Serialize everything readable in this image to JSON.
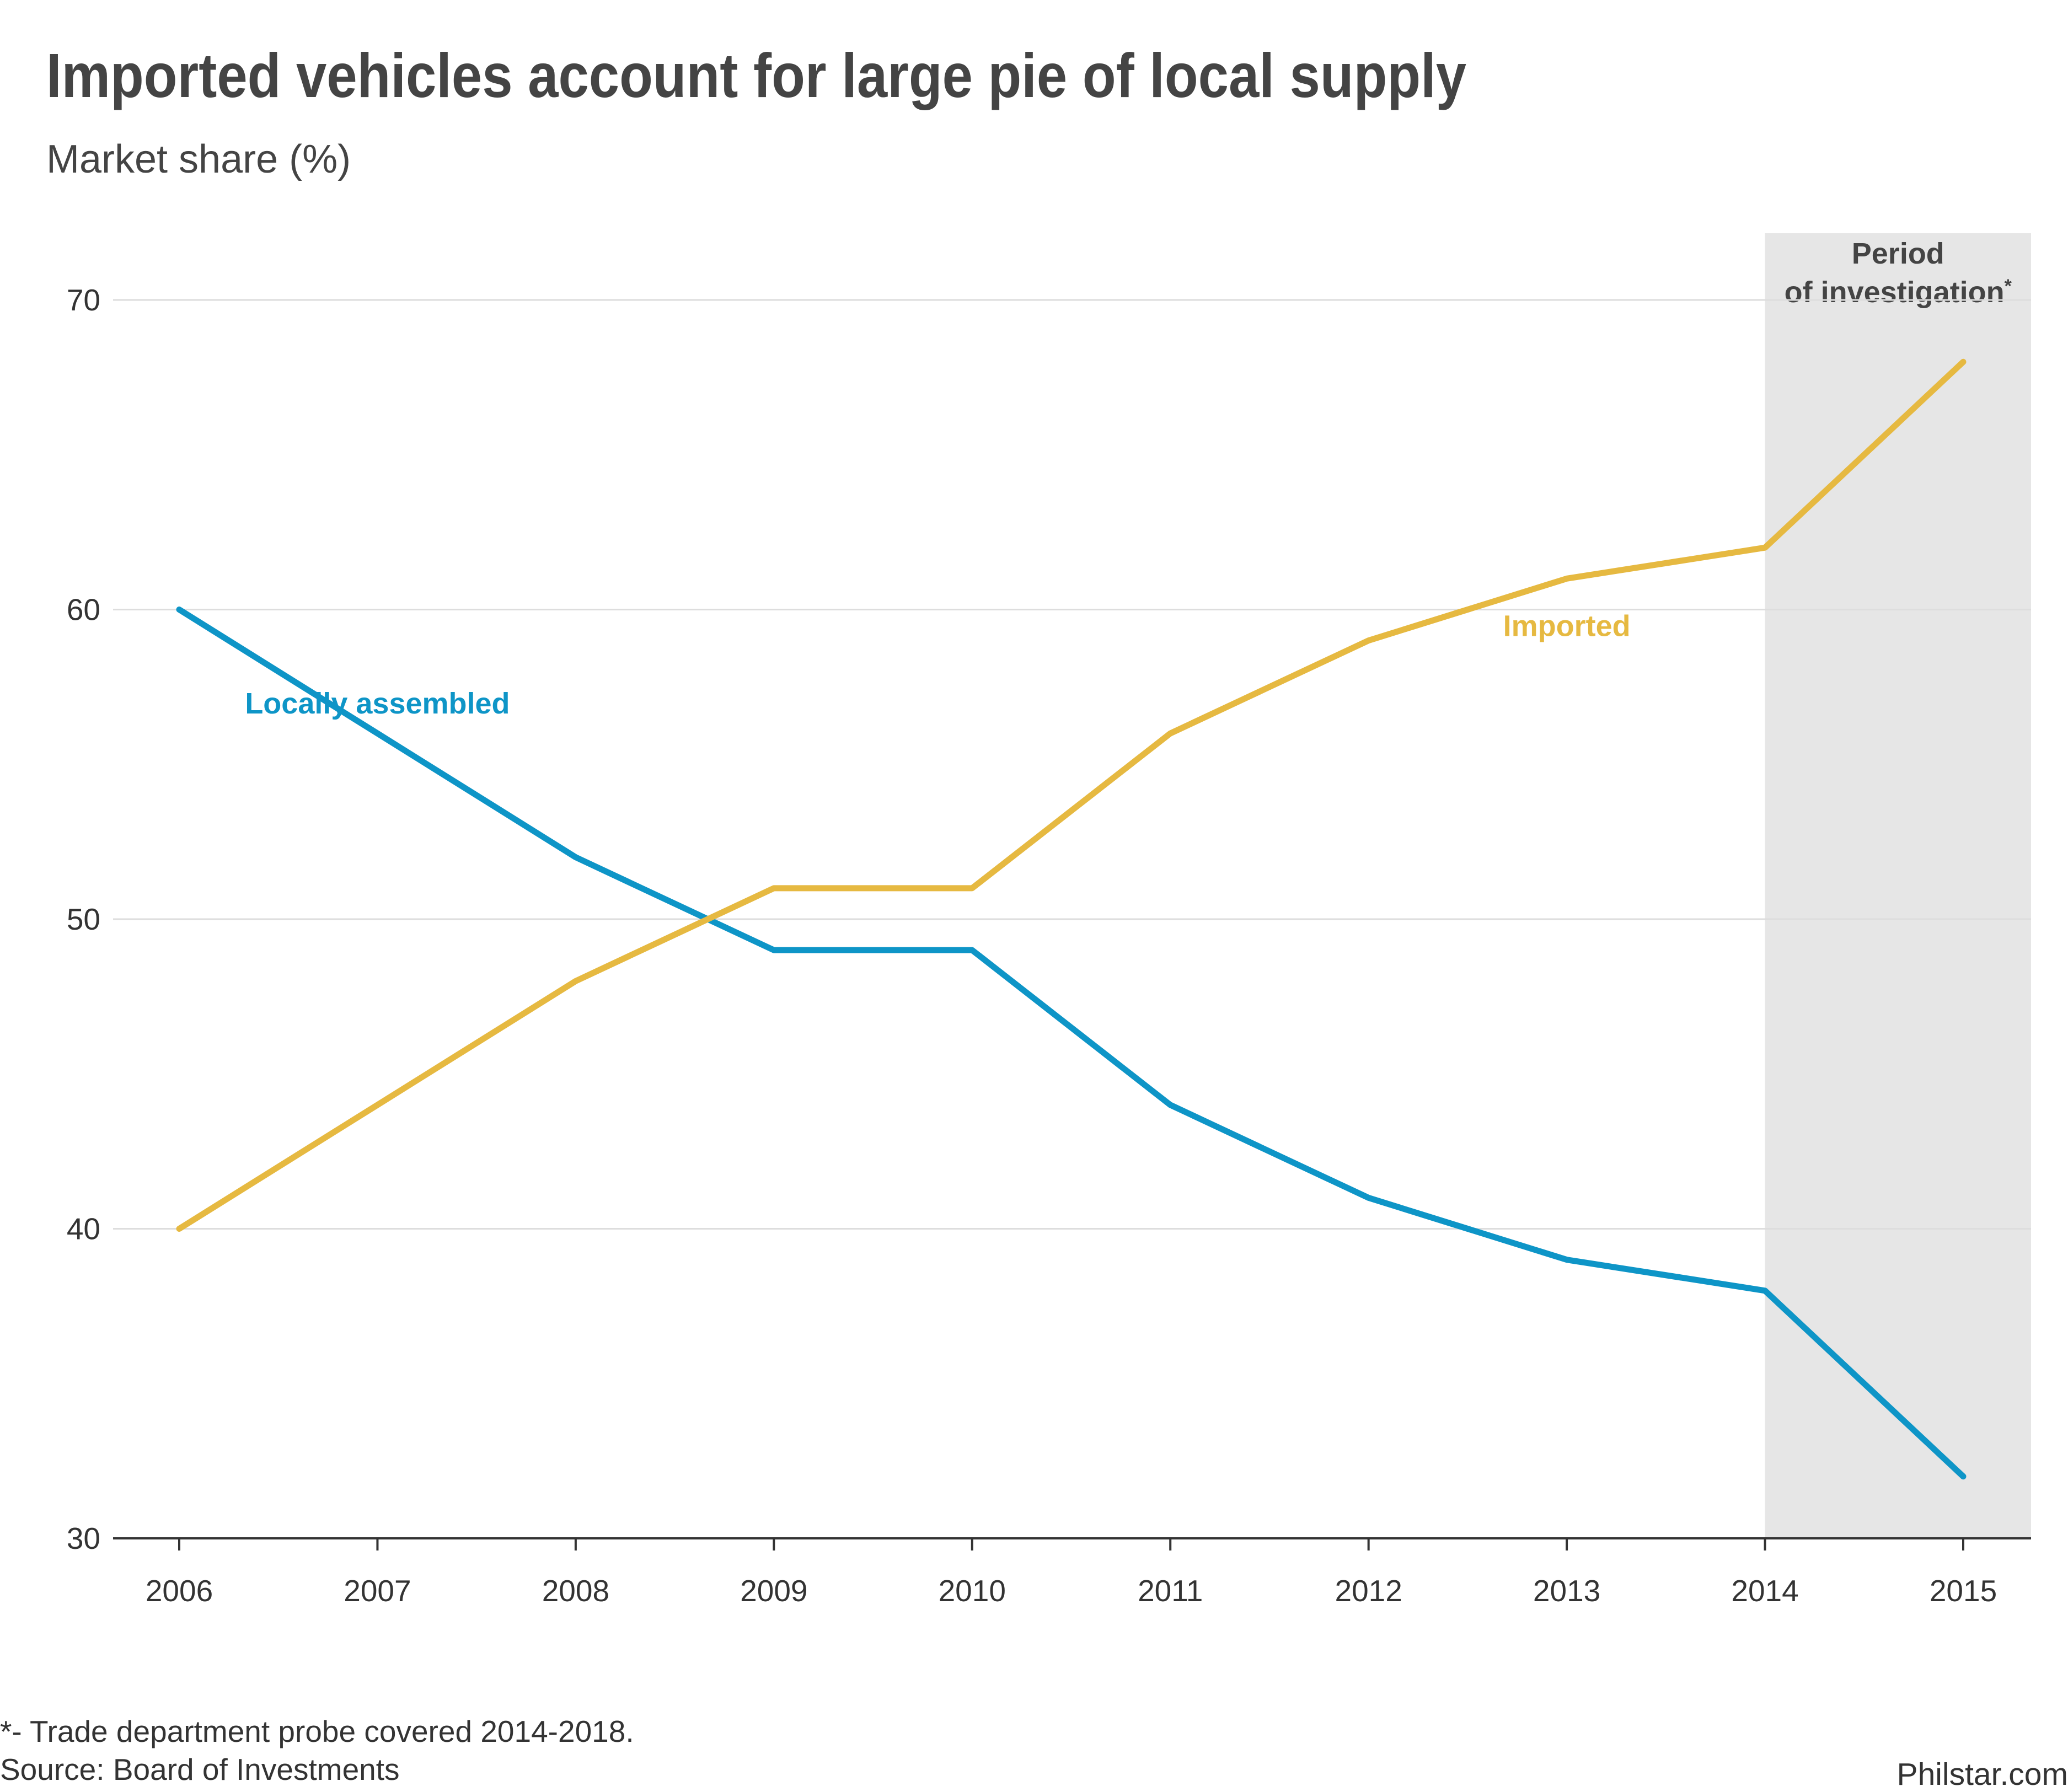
{
  "title": "Imported vehicles account for large pie of local supply",
  "subtitle": "Market share (%)",
  "footnote": "*- Trade department probe covered 2014-2018.",
  "source": "Source: Board of Investments",
  "brand": "Philstar.com",
  "colors": {
    "locally_assembled": "#0E95C7",
    "imported": "#E6B941",
    "shading": "#E6E6E6",
    "grid": "#DDDDDD",
    "axis": "#333333",
    "text": "#333333"
  },
  "chart_data": {
    "type": "line",
    "x": [
      2006,
      2007,
      2008,
      2009,
      2010,
      2011,
      2012,
      2013,
      2014,
      2015
    ],
    "x_tick_labels": [
      "2006",
      "2007",
      "2008",
      "2009",
      "2010",
      "2011",
      "2012",
      "2013",
      "2014",
      "2015"
    ],
    "ylim": [
      30,
      72
    ],
    "y_ticks": [
      30,
      40,
      50,
      60,
      70
    ],
    "y_tick_labels": [
      "30",
      "40",
      "50",
      "60",
      "70"
    ],
    "grid": true,
    "series": [
      {
        "name": "Locally assembled",
        "color": "#0E95C7",
        "values": [
          60,
          56,
          52,
          49,
          49,
          44,
          41,
          39,
          38,
          32
        ],
        "label_anchor": {
          "x": 2007,
          "y": 57
        }
      },
      {
        "name": "Imported",
        "color": "#E6B941",
        "values": [
          40,
          44,
          48,
          51,
          51,
          56,
          59,
          61,
          62,
          68
        ],
        "label_anchor": {
          "x": 2013,
          "y": 59.5
        }
      }
    ],
    "highlight_band": {
      "x_start": 2014,
      "x_end": 2015,
      "label_lines": [
        "Period",
        "of investigation"
      ],
      "label_marker": "*"
    }
  }
}
